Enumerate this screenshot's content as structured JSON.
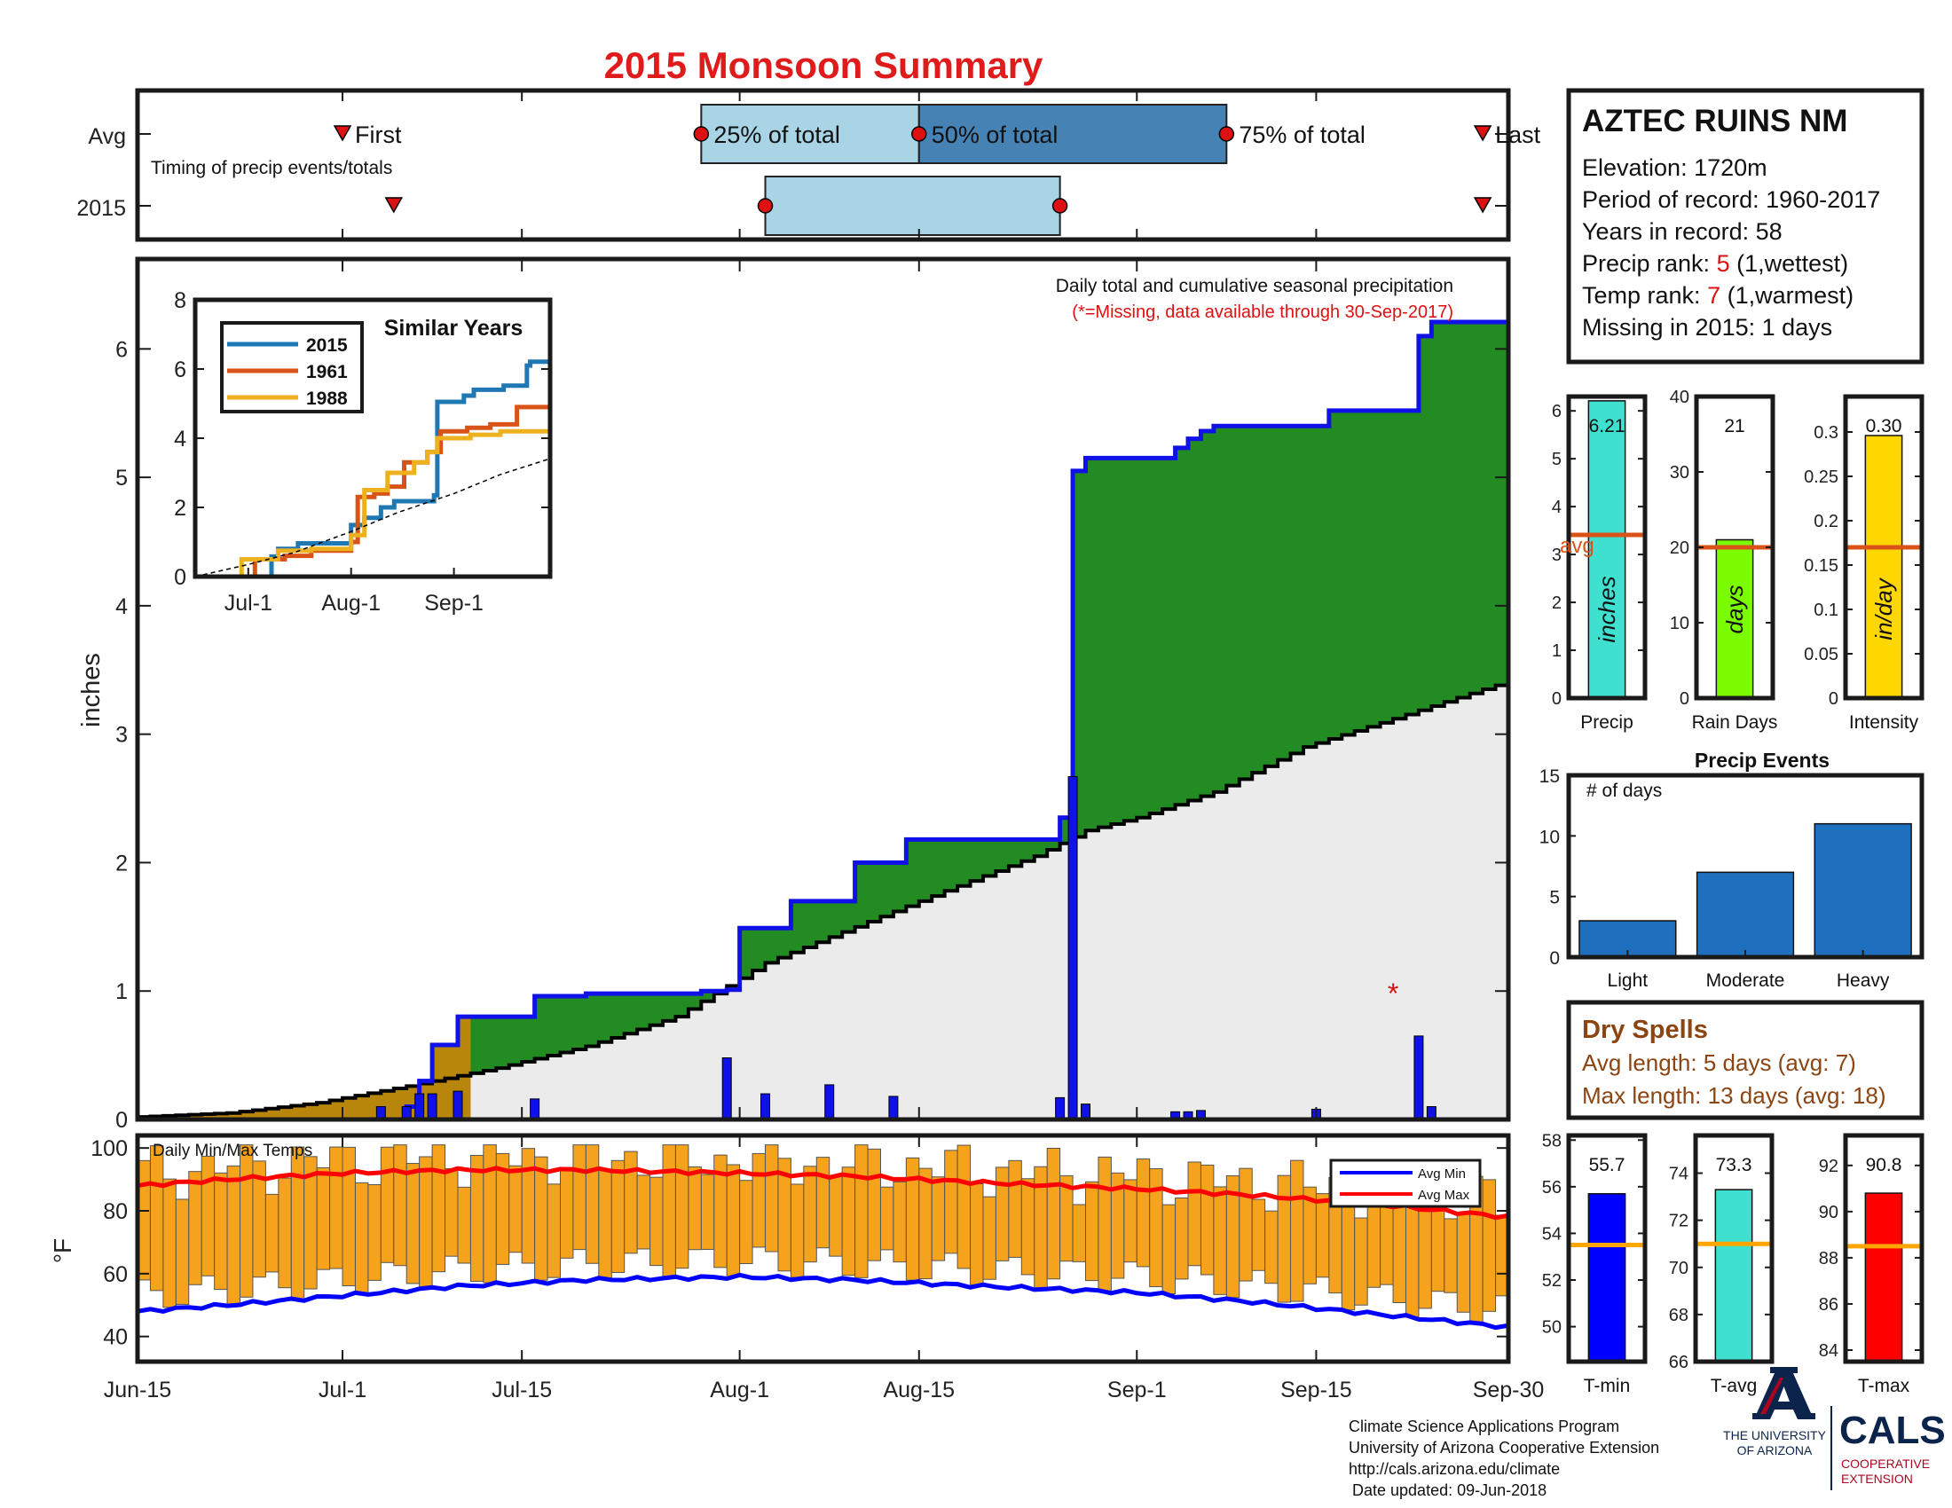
{
  "title": "2015 Monsoon Summary",
  "colors": {
    "title": "#e01b1b",
    "green": "#228b22",
    "beige": "#ebebeb",
    "blue": "#1010e8",
    "orange": "#f5a31c",
    "lightblue": "#a8d4e6",
    "steelblue": "#4682b4",
    "red": "#dd1111"
  },
  "timing": {
    "label": "Timing of precip events/totals",
    "row_labels": [
      "Avg",
      "2015"
    ],
    "first_label": "First",
    "last_label": "Last",
    "p25_label": "25% of total",
    "p50_label": "50% of total",
    "p75_label": "75% of total",
    "avg": {
      "first": "2015-07-01",
      "p25": "2015-07-29",
      "p50": "2015-08-15",
      "p75": "2015-09-08",
      "last": "2015-09-28"
    },
    "y2015": {
      "first": "2015-07-05",
      "p25": "2015-08-03",
      "p75": "2015-08-26",
      "last": "2015-09-28"
    }
  },
  "station": {
    "name": "AZTEC RUINS NM",
    "elevation": "Elevation: 1720m",
    "period": "Period of record: 1960-2017",
    "years": "Years in record: 58",
    "precip_rank_prefix": "Precip rank: ",
    "precip_rank_value": "5",
    "precip_rank_suffix": " (1,wettest)",
    "temp_rank_prefix": "Temp rank: ",
    "temp_rank_value": "7",
    "temp_rank_suffix": " (1,warmest)",
    "missing": "Missing in 2015: 1 days"
  },
  "main_chart": {
    "annotation1": "Daily total and cumulative seasonal precipitation",
    "annotation2": "(*=Missing, data available through 30-Sep-2017)",
    "ylabel": "inches",
    "ylim": [
      0,
      6.7
    ],
    "yticks": [
      0,
      1,
      2,
      3,
      4,
      5,
      6
    ],
    "missing_marker": {
      "date": "2015-09-21",
      "value": 1.0,
      "symbol": "*"
    }
  },
  "chart_data": {
    "type": "area",
    "x_range": [
      "2015-06-15",
      "2015-09-30"
    ],
    "xticks": [
      "Jun-15",
      "Jul-1",
      "Jul-15",
      "Aug-1",
      "Aug-15",
      "Sep-1",
      "Sep-15",
      "Sep-30"
    ],
    "xtick_dates": [
      "2015-06-15",
      "2015-07-01",
      "2015-07-15",
      "2015-08-01",
      "2015-08-15",
      "2015-09-01",
      "2015-09-15",
      "2015-09-30"
    ],
    "series": [
      {
        "kind": "cumulative_2015",
        "points": [
          [
            "2015-06-15",
            0
          ],
          [
            "2015-07-04",
            0
          ],
          [
            "2015-07-06",
            0.1
          ],
          [
            "2015-07-07",
            0.3
          ],
          [
            "2015-07-08",
            0.58
          ],
          [
            "2015-07-10",
            0.8
          ],
          [
            "2015-07-15",
            0.8
          ],
          [
            "2015-07-16",
            0.96
          ],
          [
            "2015-07-19",
            0.96
          ],
          [
            "2015-07-20",
            0.98
          ],
          [
            "2015-07-28",
            0.98
          ],
          [
            "2015-07-29",
            1.0
          ],
          [
            "2015-07-31",
            1.01
          ],
          [
            "2015-08-01",
            1.49
          ],
          [
            "2015-08-04",
            1.49
          ],
          [
            "2015-08-05",
            1.7
          ],
          [
            "2015-08-09",
            1.7
          ],
          [
            "2015-08-10",
            2.0
          ],
          [
            "2015-08-13",
            2.0
          ],
          [
            "2015-08-14",
            2.18
          ],
          [
            "2015-08-25",
            2.18
          ],
          [
            "2015-08-26",
            2.35
          ],
          [
            "2015-08-27",
            5.05
          ],
          [
            "2015-08-28",
            5.15
          ],
          [
            "2015-09-03",
            5.15
          ],
          [
            "2015-09-04",
            5.23
          ],
          [
            "2015-09-05",
            5.3
          ],
          [
            "2015-09-06",
            5.36
          ],
          [
            "2015-09-07",
            5.4
          ],
          [
            "2015-09-15",
            5.4
          ],
          [
            "2015-09-16",
            5.52
          ],
          [
            "2015-09-22",
            5.52
          ],
          [
            "2015-09-23",
            6.1
          ],
          [
            "2015-09-24",
            6.21
          ],
          [
            "2015-09-30",
            6.21
          ]
        ]
      },
      {
        "kind": "cumulative_avg",
        "points": [
          [
            "2015-06-15",
            0.02
          ],
          [
            "2015-06-22",
            0.05
          ],
          [
            "2015-06-29",
            0.13
          ],
          [
            "2015-07-06",
            0.26
          ],
          [
            "2015-07-13",
            0.4
          ],
          [
            "2015-07-20",
            0.57
          ],
          [
            "2015-07-27",
            0.8
          ],
          [
            "2015-08-03",
            1.22
          ],
          [
            "2015-08-10",
            1.5
          ],
          [
            "2015-08-17",
            1.78
          ],
          [
            "2015-08-24",
            2.05
          ],
          [
            "2015-08-28",
            2.25
          ],
          [
            "2015-09-01",
            2.35
          ],
          [
            "2015-09-07",
            2.55
          ],
          [
            "2015-09-14",
            2.9
          ],
          [
            "2015-09-21",
            3.12
          ],
          [
            "2015-09-28",
            3.35
          ],
          [
            "2015-09-30",
            3.41
          ]
        ]
      },
      {
        "kind": "daily",
        "points": [
          [
            "2015-07-04",
            0.1
          ],
          [
            "2015-07-06",
            0.1
          ],
          [
            "2015-07-07",
            0.2
          ],
          [
            "2015-07-08",
            0.2
          ],
          [
            "2015-07-10",
            0.22
          ],
          [
            "2015-07-16",
            0.16
          ],
          [
            "2015-07-31",
            0.48
          ],
          [
            "2015-08-03",
            0.2
          ],
          [
            "2015-08-08",
            0.27
          ],
          [
            "2015-08-13",
            0.18
          ],
          [
            "2015-08-26",
            0.17
          ],
          [
            "2015-08-27",
            2.67
          ],
          [
            "2015-08-28",
            0.12
          ],
          [
            "2015-09-04",
            0.06
          ],
          [
            "2015-09-05",
            0.06
          ],
          [
            "2015-09-06",
            0.07
          ],
          [
            "2015-09-15",
            0.08
          ],
          [
            "2015-09-23",
            0.65
          ],
          [
            "2015-09-24",
            0.1
          ]
        ]
      }
    ]
  },
  "inset": {
    "title": "Similar Years",
    "ylim": [
      0,
      8
    ],
    "yticks": [
      0,
      2,
      4,
      6,
      8
    ],
    "xticks": [
      "Jul-1",
      "Aug-1",
      "Sep-1"
    ],
    "xtick_dates": [
      "2015-07-01",
      "2015-08-01",
      "2015-09-01"
    ],
    "series": [
      {
        "name": "2015",
        "color": "#1f77b4",
        "points": [
          [
            "2015-06-15",
            0
          ],
          [
            "2015-07-04",
            0
          ],
          [
            "2015-07-08",
            0.58
          ],
          [
            "2015-07-10",
            0.8
          ],
          [
            "2015-07-16",
            0.96
          ],
          [
            "2015-08-01",
            1.49
          ],
          [
            "2015-08-05",
            1.7
          ],
          [
            "2015-08-10",
            2.0
          ],
          [
            "2015-08-14",
            2.18
          ],
          [
            "2015-08-26",
            2.35
          ],
          [
            "2015-08-27",
            5.05
          ],
          [
            "2015-09-04",
            5.23
          ],
          [
            "2015-09-07",
            5.4
          ],
          [
            "2015-09-16",
            5.52
          ],
          [
            "2015-09-23",
            6.1
          ],
          [
            "2015-09-24",
            6.21
          ],
          [
            "2015-09-30",
            6.21
          ]
        ]
      },
      {
        "name": "1961",
        "color": "#d95319",
        "points": [
          [
            "2015-06-15",
            0
          ],
          [
            "2015-06-30",
            0
          ],
          [
            "2015-07-03",
            0.5
          ],
          [
            "2015-07-12",
            0.6
          ],
          [
            "2015-07-20",
            0.75
          ],
          [
            "2015-08-01",
            1.0
          ],
          [
            "2015-08-03",
            2.3
          ],
          [
            "2015-08-08",
            2.4
          ],
          [
            "2015-08-12",
            2.6
          ],
          [
            "2015-08-17",
            3.3
          ],
          [
            "2015-08-24",
            3.6
          ],
          [
            "2015-08-28",
            4.2
          ],
          [
            "2015-09-05",
            4.3
          ],
          [
            "2015-09-12",
            4.4
          ],
          [
            "2015-09-20",
            4.9
          ],
          [
            "2015-09-30",
            4.9
          ]
        ]
      },
      {
        "name": "1988",
        "color": "#edb120",
        "points": [
          [
            "2015-06-15",
            0
          ],
          [
            "2015-06-27",
            0
          ],
          [
            "2015-06-29",
            0.5
          ],
          [
            "2015-07-10",
            0.75
          ],
          [
            "2015-07-20",
            0.8
          ],
          [
            "2015-08-01",
            1.2
          ],
          [
            "2015-08-05",
            2.5
          ],
          [
            "2015-08-12",
            3.0
          ],
          [
            "2015-08-20",
            3.3
          ],
          [
            "2015-08-24",
            3.6
          ],
          [
            "2015-08-27",
            4.0
          ],
          [
            "2015-09-06",
            4.1
          ],
          [
            "2015-09-15",
            4.2
          ],
          [
            "2015-09-30",
            4.35
          ]
        ]
      },
      {
        "name": "",
        "color": "#000000",
        "dashed": true,
        "points": [
          [
            "2015-06-15",
            0
          ],
          [
            "2015-07-01",
            0.35
          ],
          [
            "2015-07-15",
            0.7
          ],
          [
            "2015-08-01",
            1.3
          ],
          [
            "2015-08-15",
            1.85
          ],
          [
            "2015-09-01",
            2.4
          ],
          [
            "2015-09-15",
            2.95
          ],
          [
            "2015-09-30",
            3.41
          ]
        ]
      }
    ]
  },
  "bars_top": [
    {
      "label": "Precip",
      "unit": "inches",
      "value": 6.21,
      "value_text": "6.21",
      "avg": 3.41,
      "avg_label": "avg",
      "ylim": [
        0,
        6.3
      ],
      "yticks": [
        0,
        1,
        2,
        3,
        4,
        5,
        6
      ],
      "ytick_labels": [
        "0",
        "1",
        "2",
        "3",
        "4",
        "5",
        "6"
      ],
      "color": "#40e0d0"
    },
    {
      "label": "Rain Days",
      "unit": "days",
      "value": 21,
      "value_text": "21",
      "avg": 20,
      "avg_label": "",
      "ylim": [
        0,
        40
      ],
      "yticks": [
        0,
        10,
        20,
        30,
        40
      ],
      "ytick_labels": [
        "0",
        "10",
        "20",
        "30",
        "40"
      ],
      "color": "#7cfc00"
    },
    {
      "label": "Intensity",
      "unit": "in/day",
      "value": 0.296,
      "value_text": "0.30",
      "avg": 0.17,
      "avg_label": "",
      "ylim": [
        0,
        0.34
      ],
      "yticks": [
        0,
        0.05,
        0.1,
        0.15,
        0.2,
        0.25,
        0.3
      ],
      "ytick_labels": [
        "0",
        "0.05",
        "0.1",
        "0.15",
        "0.2",
        "0.25",
        "0.3"
      ],
      "color": "#ffd700"
    }
  ],
  "precip_events": {
    "title": "Precip Events",
    "ylabel": "# of days",
    "ylim": [
      0,
      15
    ],
    "yticks": [
      0,
      5,
      10,
      15
    ],
    "categories": [
      "Light",
      "Moderate",
      "Heavy"
    ],
    "values": [
      3,
      7,
      11
    ],
    "color": "#1f6fbf"
  },
  "dry_spells": {
    "title": "Dry Spells",
    "avg_length": "Avg length: 5 days (avg: 7)",
    "max_length": "Max length: 13 days (avg: 18)",
    "color": "#8b4513"
  },
  "temps": {
    "label": "Daily Min/Max Temps",
    "ylabel": "°F",
    "ylim": [
      32,
      104
    ],
    "yticks": [
      40,
      60,
      80,
      100
    ],
    "legend": [
      "Avg Min",
      "Avg Max"
    ],
    "avg_min": [
      [
        "2015-06-15",
        48
      ],
      [
        "2015-06-22",
        50
      ],
      [
        "2015-07-01",
        53
      ],
      [
        "2015-07-10",
        56
      ],
      [
        "2015-07-20",
        58
      ],
      [
        "2015-08-01",
        59
      ],
      [
        "2015-08-10",
        58
      ],
      [
        "2015-08-20",
        56
      ],
      [
        "2015-09-01",
        54
      ],
      [
        "2015-09-10",
        51
      ],
      [
        "2015-09-20",
        47
      ],
      [
        "2015-09-30",
        43
      ]
    ],
    "avg_max": [
      [
        "2015-06-15",
        88
      ],
      [
        "2015-06-22",
        90
      ],
      [
        "2015-07-01",
        92
      ],
      [
        "2015-07-10",
        93
      ],
      [
        "2015-07-20",
        93
      ],
      [
        "2015-08-01",
        92
      ],
      [
        "2015-08-10",
        91
      ],
      [
        "2015-08-20",
        89
      ],
      [
        "2015-09-01",
        87
      ],
      [
        "2015-09-10",
        85
      ],
      [
        "2015-09-20",
        82
      ],
      [
        "2015-09-30",
        78
      ]
    ]
  },
  "bars_bottom": [
    {
      "label": "T-min",
      "value": 55.7,
      "value_text": "55.7",
      "avg": 53.5,
      "ylim": [
        48.5,
        58.2
      ],
      "yticks": [
        50,
        52,
        54,
        56,
        58
      ],
      "color": "#0000ff"
    },
    {
      "label": "T-avg",
      "value": 73.3,
      "value_text": "73.3",
      "avg": 71.0,
      "ylim": [
        66,
        75.6
      ],
      "yticks": [
        66,
        68,
        70,
        72,
        74
      ],
      "color": "#40e0d0"
    },
    {
      "label": "T-max",
      "value": 90.8,
      "value_text": "90.8",
      "avg": 88.5,
      "ylim": [
        83.5,
        93.3
      ],
      "yticks": [
        84,
        86,
        88,
        90,
        92
      ],
      "color": "#ff0000"
    }
  ],
  "footer": {
    "line1": "Climate Science Applications Program",
    "line2": "University of Arizona Cooperative Extension",
    "line3": "http://cals.arizona.edu/climate",
    "line4": "Date updated: 09-Jun-2018"
  },
  "logos": {
    "ua_line1": "THE UNIVERSITY",
    "ua_line2": "OF ARIZONA",
    "cals": "CALS",
    "cals_sub1": "COOPERATIVE",
    "cals_sub2": "EXTENSION"
  }
}
